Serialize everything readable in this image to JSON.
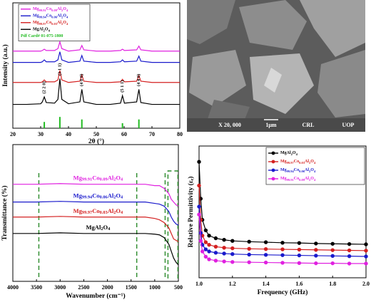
{
  "chart_data": [
    {
      "type": "line",
      "x_label": "2θ (°)",
      "y_label": "Intensity (a.u.)",
      "xlim": [
        20,
        80
      ],
      "xticks": [
        20,
        30,
        40,
        50,
        60,
        70,
        80
      ],
      "ylim": [
        0,
        10
      ],
      "legend": "upper left",
      "x": [
        20,
        25,
        30,
        30.6,
        31.3,
        32,
        35,
        36.2,
        36.9,
        37.6,
        40,
        44.1,
        44.8,
        45.5,
        50,
        55,
        58.7,
        59.4,
        60.1,
        64.5,
        65.3,
        66,
        70,
        75,
        80
      ],
      "series": [
        {
          "name": "Mg99.91Co0.09Al2O4",
          "color": "#e020e0",
          "values": [
            6.15,
            6.15,
            6.15,
            6.2,
            6.3,
            6.2,
            6.2,
            6.35,
            6.9,
            6.35,
            6.15,
            6.25,
            6.6,
            6.25,
            6.15,
            6.15,
            6.2,
            6.3,
            6.2,
            6.25,
            6.55,
            6.25,
            6.15,
            6.15,
            6.15
          ]
        },
        {
          "name": "Mg99.94Co0.06Al2O4",
          "color": "#1a1acc",
          "values": [
            5.25,
            5.25,
            5.25,
            5.3,
            5.45,
            5.3,
            5.3,
            5.45,
            6.1,
            5.45,
            5.25,
            5.35,
            5.8,
            5.35,
            5.25,
            5.25,
            5.3,
            5.45,
            5.3,
            5.35,
            5.75,
            5.35,
            5.25,
            5.25,
            5.25
          ]
        },
        {
          "name": "Mg99.97Co0.03Al2O4",
          "color": "#d42020",
          "values": [
            3.65,
            3.65,
            3.65,
            3.7,
            3.85,
            3.7,
            3.7,
            3.85,
            4.6,
            3.85,
            3.65,
            3.75,
            4.25,
            3.75,
            3.65,
            3.65,
            3.7,
            3.9,
            3.7,
            3.75,
            4.2,
            3.75,
            3.65,
            3.65,
            3.65
          ]
        },
        {
          "name": "MgAl2O4",
          "color": "#000000",
          "values": [
            1.9,
            1.9,
            1.95,
            2.1,
            2.5,
            2.05,
            2.0,
            2.3,
            3.95,
            2.3,
            1.95,
            2.1,
            3.1,
            2.1,
            1.9,
            1.9,
            2.0,
            2.6,
            2.0,
            2.1,
            3.1,
            2.05,
            1.9,
            1.9,
            1.9
          ]
        }
      ],
      "reference": {
        "label": "Pdf Card# 01-075-1800",
        "color": "#22bb22",
        "positions": [
          31.3,
          36.9,
          44.8,
          59.4,
          65.3
        ],
        "heights": [
          0.5,
          0.9,
          0.7,
          0.4,
          0.7
        ]
      },
      "peak_labels": [
        {
          "x": 31.3,
          "text": "(2 2 0)"
        },
        {
          "x": 36.9,
          "text": "(3 1 1)"
        },
        {
          "x": 44.8,
          "text": "(4 0 0)"
        },
        {
          "x": 59.4,
          "text": "(5 1 1)"
        },
        {
          "x": 65.3,
          "text": "(4 4 0)"
        }
      ]
    },
    {
      "type": "line",
      "x_label": "Wavenumber (cm⁻¹)",
      "y_label": "Transmittance (%)",
      "xlim": [
        4000,
        500
      ],
      "xticks": [
        4000,
        3500,
        3000,
        2500,
        2000,
        1500,
        1000,
        500
      ],
      "ylim": [
        0,
        100
      ],
      "legend": "inline",
      "x": [
        4000,
        3500,
        3000,
        2500,
        2000,
        1500,
        1200,
        1000,
        900,
        800,
        700,
        650,
        600,
        550,
        500
      ],
      "series": [
        {
          "name": "Mg99.91Co0.09Al2O4",
          "color": "#e020e0",
          "values": [
            71,
            71,
            71.5,
            71,
            71,
            71,
            71,
            70,
            70,
            68,
            64,
            60,
            58,
            56,
            55
          ]
        },
        {
          "name": "Mg99.94Co0.06Al2O4",
          "color": "#1a1acc",
          "values": [
            58,
            58,
            58.5,
            58,
            58,
            58,
            58,
            57,
            56.5,
            55,
            51,
            47,
            44,
            42,
            41
          ]
        },
        {
          "name": "Mg99.97Co0.03Al2O4",
          "color": "#d42020",
          "values": [
            47,
            47,
            47.5,
            47,
            47,
            47,
            47,
            46,
            45,
            43,
            39,
            35,
            31,
            30,
            29
          ]
        },
        {
          "name": "MgAl2O4",
          "color": "#000000",
          "values": [
            35,
            35,
            35.5,
            35,
            35,
            35,
            35,
            34.5,
            34,
            32,
            27,
            22,
            17,
            14,
            12
          ]
        }
      ],
      "marker_lines": [
        3450,
        1380,
        780
      ],
      "marker_box": [
        720,
        510
      ],
      "marker_color": "#2a8a2a"
    },
    {
      "type": "line",
      "markers": true,
      "x_label": "Frequency (GHz)",
      "y_label": "Relative Permittivity (εᵣ)",
      "xlim": [
        1,
        2
      ],
      "xticks": [
        {
          "value": 1,
          "label": "1.0"
        },
        1.2,
        1.4,
        1.6,
        1.8,
        {
          "value": 2,
          "label": "2.0"
        }
      ],
      "ylim": [
        0,
        50
      ],
      "legend": "upper right",
      "x": [
        1.0,
        1.01,
        1.02,
        1.04,
        1.06,
        1.1,
        1.15,
        1.2,
        1.3,
        1.4,
        1.5,
        1.6,
        1.7,
        1.8,
        1.9,
        2.0
      ],
      "series": [
        {
          "name": "MgAl2O4",
          "color": "#000000",
          "values": [
            44,
            30,
            22,
            18,
            16,
            15,
            14.4,
            14,
            13.7,
            13.5,
            13.3,
            13.2,
            13,
            12.9,
            12.8,
            12.7
          ]
        },
        {
          "name": "Mg99.97Co0.03Al2O4",
          "color": "#d42020",
          "values": [
            35,
            22,
            16,
            13.5,
            12.5,
            11.8,
            11.4,
            11.2,
            11,
            10.9,
            10.8,
            10.7,
            10.6,
            10.5,
            10.4,
            10.3
          ]
        },
        {
          "name": "Mg99.94Co0.06Al2O4",
          "color": "#1a1acc",
          "values": [
            27,
            17,
            12.5,
            10.8,
            10,
            9.5,
            9.2,
            9,
            8.8,
            8.7,
            8.6,
            8.5,
            8.4,
            8.3,
            8.2,
            8.1
          ]
        },
        {
          "name": "Mg99.91Co0.09Al2O4",
          "color": "#e020e0",
          "values": [
            24,
            14,
            10,
            8,
            7,
            6.5,
            6.2,
            6,
            5.9,
            5.8,
            5.7,
            5.6,
            5.5,
            5.5,
            5.4,
            5.4
          ]
        }
      ]
    }
  ],
  "sem_image": {
    "magnification": "X 20, 000",
    "scale_bar": "1μm",
    "lab": "CRL",
    "institution": "UOP"
  }
}
